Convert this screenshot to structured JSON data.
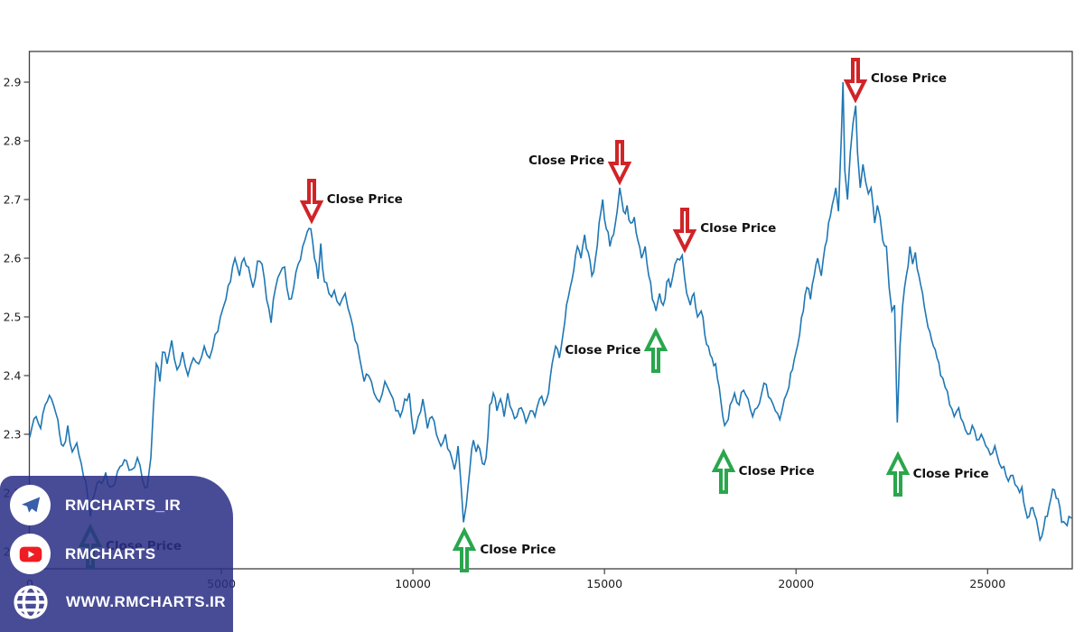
{
  "figure": {
    "background": "#ffffff",
    "plot_border_color": "#3f3f3f",
    "tick_label_color": "#1c1c1c"
  },
  "colors": {
    "line": "#1f77b4",
    "arrow_down": "#d02428",
    "arrow_up": "#2aa64d",
    "overlay_bg": "rgba(42,47,133,0.86)",
    "telegram_plane": "#3a5ea8",
    "youtube_red": "#ee1d24"
  },
  "overlay": {
    "items": [
      {
        "icon": "telegram-icon",
        "circle": true,
        "label": "RMCHARTS_IR"
      },
      {
        "icon": "youtube-icon",
        "circle": true,
        "label": "RMCHARTS"
      },
      {
        "icon": "globe-icon",
        "circle": false,
        "label": "WWW.RMCHARTS.IR"
      }
    ]
  },
  "chart_data": {
    "type": "line",
    "title": "",
    "xlabel": "",
    "ylabel": "",
    "grid": false,
    "xlim": [
      0,
      27200
    ],
    "ylim": [
      2.07,
      2.95
    ],
    "xticks": [
      0,
      5000,
      10000,
      15000,
      20000,
      25000
    ],
    "yticks": [
      "2.1",
      "2.2",
      "2.3",
      "2.4",
      "2.5",
      "2.6",
      "2.7",
      "2.8",
      "2.9"
    ],
    "series": [
      {
        "name": "Close Price",
        "points": [
          [
            0,
            2.295
          ],
          [
            165,
            2.33
          ],
          [
            283,
            2.31
          ],
          [
            401,
            2.35
          ],
          [
            566,
            2.36
          ],
          [
            684,
            2.335
          ],
          [
            778,
            2.3
          ],
          [
            873,
            2.28
          ],
          [
            990,
            2.315
          ],
          [
            1108,
            2.27
          ],
          [
            1226,
            2.285
          ],
          [
            1344,
            2.25
          ],
          [
            1462,
            2.22
          ],
          [
            1580,
            2.16
          ],
          [
            1698,
            2.2
          ],
          [
            1816,
            2.22
          ],
          [
            1981,
            2.235
          ],
          [
            2099,
            2.21
          ],
          [
            2217,
            2.215
          ],
          [
            2359,
            2.245
          ],
          [
            2524,
            2.255
          ],
          [
            2665,
            2.24
          ],
          [
            2807,
            2.26
          ],
          [
            2948,
            2.22
          ],
          [
            3066,
            2.21
          ],
          [
            3160,
            2.26
          ],
          [
            3231,
            2.35
          ],
          [
            3302,
            2.42
          ],
          [
            3396,
            2.39
          ],
          [
            3467,
            2.44
          ],
          [
            3585,
            2.42
          ],
          [
            3703,
            2.46
          ],
          [
            3844,
            2.41
          ],
          [
            3986,
            2.44
          ],
          [
            4127,
            2.4
          ],
          [
            4269,
            2.43
          ],
          [
            4410,
            2.42
          ],
          [
            4552,
            2.45
          ],
          [
            4693,
            2.43
          ],
          [
            4835,
            2.47
          ],
          [
            4976,
            2.5
          ],
          [
            5118,
            2.53
          ],
          [
            5236,
            2.56
          ],
          [
            5354,
            2.6
          ],
          [
            5472,
            2.57
          ],
          [
            5590,
            2.6
          ],
          [
            5708,
            2.585
          ],
          [
            5826,
            2.55
          ],
          [
            5944,
            2.595
          ],
          [
            6061,
            2.59
          ],
          [
            6179,
            2.53
          ],
          [
            6297,
            2.49
          ],
          [
            6415,
            2.55
          ],
          [
            6533,
            2.575
          ],
          [
            6651,
            2.585
          ],
          [
            6769,
            2.53
          ],
          [
            6887,
            2.55
          ],
          [
            7005,
            2.59
          ],
          [
            7123,
            2.62
          ],
          [
            7241,
            2.645
          ],
          [
            7335,
            2.65
          ],
          [
            7429,
            2.6
          ],
          [
            7524,
            2.565
          ],
          [
            7594,
            2.625
          ],
          [
            7689,
            2.56
          ],
          [
            7807,
            2.54
          ],
          [
            7948,
            2.545
          ],
          [
            8090,
            2.52
          ],
          [
            8231,
            2.54
          ],
          [
            8373,
            2.5
          ],
          [
            8491,
            2.46
          ],
          [
            8609,
            2.43
          ],
          [
            8727,
            2.39
          ],
          [
            8845,
            2.4
          ],
          [
            8986,
            2.37
          ],
          [
            9128,
            2.355
          ],
          [
            9269,
            2.39
          ],
          [
            9411,
            2.37
          ],
          [
            9552,
            2.34
          ],
          [
            9670,
            2.33
          ],
          [
            9788,
            2.36
          ],
          [
            9906,
            2.37
          ],
          [
            10024,
            2.3
          ],
          [
            10142,
            2.33
          ],
          [
            10260,
            2.36
          ],
          [
            10378,
            2.31
          ],
          [
            10496,
            2.33
          ],
          [
            10613,
            2.3
          ],
          [
            10731,
            2.28
          ],
          [
            10849,
            2.3
          ],
          [
            10967,
            2.27
          ],
          [
            11085,
            2.24
          ],
          [
            11179,
            2.28
          ],
          [
            11250,
            2.22
          ],
          [
            11321,
            2.15
          ],
          [
            11392,
            2.18
          ],
          [
            11486,
            2.24
          ],
          [
            11580,
            2.29
          ],
          [
            11651,
            2.27
          ],
          [
            11745,
            2.275
          ],
          [
            11816,
            2.25
          ],
          [
            11910,
            2.26
          ],
          [
            12004,
            2.35
          ],
          [
            12099,
            2.37
          ],
          [
            12193,
            2.34
          ],
          [
            12287,
            2.36
          ],
          [
            12382,
            2.33
          ],
          [
            12476,
            2.37
          ],
          [
            12594,
            2.34
          ],
          [
            12712,
            2.33
          ],
          [
            12830,
            2.345
          ],
          [
            12948,
            2.32
          ],
          [
            13066,
            2.34
          ],
          [
            13184,
            2.33
          ],
          [
            13302,
            2.36
          ],
          [
            13420,
            2.35
          ],
          [
            13538,
            2.37
          ],
          [
            13632,
            2.42
          ],
          [
            13726,
            2.45
          ],
          [
            13821,
            2.43
          ],
          [
            13915,
            2.47
          ],
          [
            14009,
            2.52
          ],
          [
            14104,
            2.55
          ],
          [
            14198,
            2.58
          ],
          [
            14292,
            2.62
          ],
          [
            14387,
            2.6
          ],
          [
            14481,
            2.64
          ],
          [
            14575,
            2.61
          ],
          [
            14670,
            2.57
          ],
          [
            14764,
            2.6
          ],
          [
            14858,
            2.66
          ],
          [
            14953,
            2.7
          ],
          [
            15047,
            2.65
          ],
          [
            15141,
            2.62
          ],
          [
            15236,
            2.64
          ],
          [
            15330,
            2.68
          ],
          [
            15400,
            2.72
          ],
          [
            15495,
            2.68
          ],
          [
            15590,
            2.69
          ],
          [
            15684,
            2.66
          ],
          [
            15778,
            2.67
          ],
          [
            15873,
            2.63
          ],
          [
            15967,
            2.6
          ],
          [
            16061,
            2.62
          ],
          [
            16156,
            2.57
          ],
          [
            16250,
            2.53
          ],
          [
            16344,
            2.51
          ],
          [
            16439,
            2.54
          ],
          [
            16533,
            2.52
          ],
          [
            16627,
            2.56
          ],
          [
            16722,
            2.55
          ],
          [
            16840,
            2.59
          ],
          [
            17028,
            2.605
          ],
          [
            17146,
            2.54
          ],
          [
            17240,
            2.52
          ],
          [
            17335,
            2.54
          ],
          [
            17429,
            2.5
          ],
          [
            17523,
            2.51
          ],
          [
            17618,
            2.47
          ],
          [
            17712,
            2.45
          ],
          [
            17806,
            2.43
          ],
          [
            17901,
            2.42
          ],
          [
            17995,
            2.38
          ],
          [
            18090,
            2.33
          ],
          [
            18184,
            2.32
          ],
          [
            18278,
            2.35
          ],
          [
            18396,
            2.37
          ],
          [
            18514,
            2.35
          ],
          [
            18632,
            2.375
          ],
          [
            18750,
            2.36
          ],
          [
            18868,
            2.33
          ],
          [
            18986,
            2.345
          ],
          [
            19104,
            2.37
          ],
          [
            19222,
            2.385
          ],
          [
            19340,
            2.36
          ],
          [
            19458,
            2.34
          ],
          [
            19576,
            2.325
          ],
          [
            19694,
            2.36
          ],
          [
            19812,
            2.38
          ],
          [
            19906,
            2.41
          ],
          [
            20000,
            2.44
          ],
          [
            20094,
            2.47
          ],
          [
            20189,
            2.51
          ],
          [
            20283,
            2.55
          ],
          [
            20377,
            2.53
          ],
          [
            20472,
            2.57
          ],
          [
            20566,
            2.6
          ],
          [
            20660,
            2.57
          ],
          [
            20755,
            2.62
          ],
          [
            20849,
            2.66
          ],
          [
            20943,
            2.69
          ],
          [
            21038,
            2.72
          ],
          [
            21108,
            2.68
          ],
          [
            21179,
            2.8
          ],
          [
            21226,
            2.9
          ],
          [
            21273,
            2.75
          ],
          [
            21344,
            2.7
          ],
          [
            21415,
            2.78
          ],
          [
            21486,
            2.83
          ],
          [
            21557,
            2.86
          ],
          [
            21604,
            2.78
          ],
          [
            21675,
            2.72
          ],
          [
            21746,
            2.76
          ],
          [
            21816,
            2.73
          ],
          [
            21887,
            2.71
          ],
          [
            21958,
            2.72
          ],
          [
            22052,
            2.66
          ],
          [
            22123,
            2.69
          ],
          [
            22194,
            2.67
          ],
          [
            22264,
            2.63
          ],
          [
            22359,
            2.62
          ],
          [
            22429,
            2.55
          ],
          [
            22500,
            2.51
          ],
          [
            22571,
            2.52
          ],
          [
            22641,
            2.32
          ],
          [
            22712,
            2.45
          ],
          [
            22783,
            2.52
          ],
          [
            22877,
            2.57
          ],
          [
            22972,
            2.62
          ],
          [
            23042,
            2.59
          ],
          [
            23113,
            2.61
          ],
          [
            23208,
            2.57
          ],
          [
            23302,
            2.54
          ],
          [
            23396,
            2.5
          ],
          [
            23491,
            2.475
          ],
          [
            23585,
            2.45
          ],
          [
            23679,
            2.43
          ],
          [
            23774,
            2.4
          ],
          [
            23892,
            2.38
          ],
          [
            24010,
            2.35
          ],
          [
            24128,
            2.33
          ],
          [
            24246,
            2.345
          ],
          [
            24364,
            2.32
          ],
          [
            24482,
            2.3
          ],
          [
            24600,
            2.315
          ],
          [
            24717,
            2.29
          ],
          [
            24835,
            2.3
          ],
          [
            24953,
            2.28
          ],
          [
            25071,
            2.265
          ],
          [
            25189,
            2.28
          ],
          [
            25307,
            2.25
          ],
          [
            25425,
            2.245
          ],
          [
            25543,
            2.22
          ],
          [
            25661,
            2.23
          ],
          [
            25779,
            2.21
          ],
          [
            25897,
            2.21
          ],
          [
            25991,
            2.17
          ],
          [
            26085,
            2.16
          ],
          [
            26179,
            2.175
          ],
          [
            26274,
            2.155
          ],
          [
            26368,
            2.12
          ],
          [
            26462,
            2.14
          ],
          [
            26557,
            2.16
          ],
          [
            26651,
            2.19
          ],
          [
            26745,
            2.205
          ],
          [
            26840,
            2.19
          ],
          [
            26934,
            2.15
          ],
          [
            27028,
            2.148
          ],
          [
            27123,
            2.16
          ],
          [
            27193,
            2.157
          ]
        ]
      }
    ],
    "annotations": [
      {
        "label": "Close Price",
        "x": 7350,
        "price": 2.662,
        "direction": "down",
        "label_side": "right"
      },
      {
        "label": "Close Price",
        "x": 15400,
        "price": 2.728,
        "direction": "down",
        "label_side": "left"
      },
      {
        "label": "Close Price",
        "x": 17100,
        "price": 2.612,
        "direction": "down",
        "label_side": "right"
      },
      {
        "label": "Close Price",
        "x": 21550,
        "price": 2.868,
        "direction": "down",
        "label_side": "right"
      },
      {
        "label": "Close Price",
        "x": 1580,
        "price": 2.145,
        "direction": "up",
        "label_side": "right"
      },
      {
        "label": "Close Price",
        "x": 11350,
        "price": 2.138,
        "direction": "up",
        "label_side": "right"
      },
      {
        "label": "Close Price",
        "x": 16350,
        "price": 2.478,
        "direction": "up",
        "label_side": "left"
      },
      {
        "label": "Close Price",
        "x": 18100,
        "price": 2.272,
        "direction": "up",
        "label_side": "right"
      },
      {
        "label": "Close Price",
        "x": 22650,
        "price": 2.268,
        "direction": "up",
        "label_side": "right"
      }
    ]
  }
}
